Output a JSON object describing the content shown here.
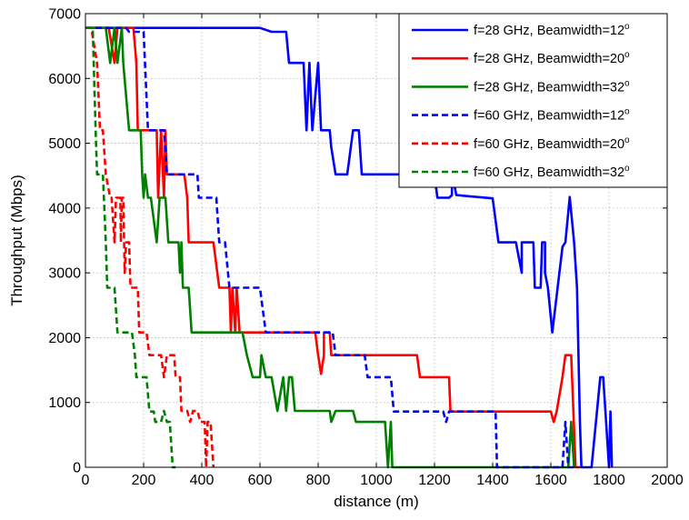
{
  "chart_data": {
    "type": "line",
    "xlabel": "distance (m)",
    "ylabel": "Throughput (Mbps)",
    "xlim": [
      0,
      2000
    ],
    "ylim": [
      0,
      7000
    ],
    "xticks": [
      0,
      200,
      400,
      600,
      800,
      1000,
      1200,
      1400,
      1600,
      1800,
      2000
    ],
    "yticks": [
      0,
      1000,
      2000,
      3000,
      4000,
      5000,
      6000,
      7000
    ],
    "grid": true,
    "legend_position": "top-right",
    "series": [
      {
        "name": "f=28 GHz, Beamwidth=12",
        "name_suffix": "o",
        "color": "#0000ff",
        "dash": "solid",
        "points": [
          [
            0,
            6780
          ],
          [
            600,
            6780
          ],
          [
            640,
            6720
          ],
          [
            690,
            6720
          ],
          [
            700,
            6240
          ],
          [
            750,
            6240
          ],
          [
            760,
            5200
          ],
          [
            770,
            6240
          ],
          [
            780,
            5200
          ],
          [
            800,
            6240
          ],
          [
            810,
            5200
          ],
          [
            840,
            5200
          ],
          [
            845,
            4940
          ],
          [
            860,
            4520
          ],
          [
            900,
            4520
          ],
          [
            920,
            5200
          ],
          [
            940,
            5200
          ],
          [
            950,
            4520
          ],
          [
            1200,
            4520
          ],
          [
            1210,
            4160
          ],
          [
            1250,
            4160
          ],
          [
            1260,
            4200
          ],
          [
            1260,
            4550
          ],
          [
            1275,
            4200
          ],
          [
            1400,
            4150
          ],
          [
            1420,
            3470
          ],
          [
            1480,
            3470
          ],
          [
            1500,
            3000
          ],
          [
            1500,
            3470
          ],
          [
            1540,
            3470
          ],
          [
            1545,
            2770
          ],
          [
            1565,
            2770
          ],
          [
            1570,
            3470
          ],
          [
            1580,
            3470
          ],
          [
            1580,
            3000
          ],
          [
            1590,
            2770
          ],
          [
            1605,
            2080
          ],
          [
            1640,
            3400
          ],
          [
            1650,
            3470
          ],
          [
            1665,
            4170
          ],
          [
            1680,
            3470
          ],
          [
            1690,
            2770
          ],
          [
            1700,
            700
          ],
          [
            1705,
            0
          ],
          [
            1740,
            0
          ],
          [
            1770,
            1390
          ],
          [
            1780,
            1390
          ],
          [
            1790,
            700
          ],
          [
            1800,
            0
          ],
          [
            1805,
            860
          ],
          [
            1810,
            0
          ]
        ]
      },
      {
        "name": "f=28 GHz, Beamwidth=20",
        "name_suffix": "o",
        "color": "#ff0000",
        "dash": "solid",
        "points": [
          [
            0,
            6780
          ],
          [
            80,
            6780
          ],
          [
            100,
            6240
          ],
          [
            110,
            6780
          ],
          [
            165,
            6780
          ],
          [
            175,
            6240
          ],
          [
            180,
            5200
          ],
          [
            245,
            5200
          ],
          [
            250,
            4160
          ],
          [
            260,
            5200
          ],
          [
            270,
            4160
          ],
          [
            275,
            5200
          ],
          [
            280,
            4520
          ],
          [
            340,
            4520
          ],
          [
            350,
            4160
          ],
          [
            355,
            3470
          ],
          [
            420,
            3470
          ],
          [
            440,
            3470
          ],
          [
            460,
            2770
          ],
          [
            495,
            2770
          ],
          [
            500,
            2080
          ],
          [
            505,
            2770
          ],
          [
            515,
            2080
          ],
          [
            520,
            2770
          ],
          [
            530,
            2080
          ],
          [
            790,
            2080
          ],
          [
            800,
            1730
          ],
          [
            810,
            1440
          ],
          [
            820,
            1730
          ],
          [
            820,
            2080
          ],
          [
            840,
            2080
          ],
          [
            845,
            1730
          ],
          [
            1140,
            1730
          ],
          [
            1150,
            1390
          ],
          [
            1250,
            1390
          ],
          [
            1255,
            860
          ],
          [
            1600,
            860
          ],
          [
            1610,
            700
          ],
          [
            1620,
            860
          ],
          [
            1640,
            1390
          ],
          [
            1650,
            1730
          ],
          [
            1670,
            1730
          ],
          [
            1685,
            0
          ],
          [
            1700,
            0
          ]
        ]
      },
      {
        "name": "f=28 GHz, Beamwidth=32",
        "name_suffix": "o",
        "color": "#008000",
        "dash": "solid",
        "points": [
          [
            0,
            6780
          ],
          [
            70,
            6780
          ],
          [
            85,
            6240
          ],
          [
            100,
            6780
          ],
          [
            110,
            6240
          ],
          [
            125,
            6780
          ],
          [
            130,
            6240
          ],
          [
            150,
            5200
          ],
          [
            190,
            5200
          ],
          [
            195,
            4520
          ],
          [
            200,
            4160
          ],
          [
            205,
            4520
          ],
          [
            215,
            4160
          ],
          [
            225,
            4160
          ],
          [
            245,
            3470
          ],
          [
            255,
            4160
          ],
          [
            275,
            4160
          ],
          [
            285,
            3470
          ],
          [
            320,
            3470
          ],
          [
            325,
            3000
          ],
          [
            330,
            3470
          ],
          [
            335,
            2770
          ],
          [
            355,
            2770
          ],
          [
            365,
            2080
          ],
          [
            540,
            2080
          ],
          [
            555,
            1730
          ],
          [
            575,
            1390
          ],
          [
            600,
            1390
          ],
          [
            605,
            1730
          ],
          [
            620,
            1390
          ],
          [
            640,
            1390
          ],
          [
            660,
            870
          ],
          [
            680,
            1390
          ],
          [
            690,
            870
          ],
          [
            700,
            1390
          ],
          [
            710,
            1390
          ],
          [
            720,
            870
          ],
          [
            840,
            870
          ],
          [
            845,
            700
          ],
          [
            860,
            870
          ],
          [
            920,
            870
          ],
          [
            930,
            700
          ],
          [
            1030,
            700
          ],
          [
            1040,
            0
          ],
          [
            1050,
            700
          ],
          [
            1055,
            0
          ],
          [
            1660,
            0
          ],
          [
            1670,
            700
          ],
          [
            1680,
            0
          ]
        ]
      },
      {
        "name": "f=60 GHz, Beamwidth=12",
        "name_suffix": "o",
        "color": "#0000ff",
        "dash": "dashed",
        "points": [
          [
            0,
            6780
          ],
          [
            140,
            6780
          ],
          [
            150,
            6720
          ],
          [
            200,
            6720
          ],
          [
            215,
            5200
          ],
          [
            270,
            5200
          ],
          [
            280,
            4520
          ],
          [
            385,
            4520
          ],
          [
            390,
            4160
          ],
          [
            450,
            4160
          ],
          [
            460,
            3470
          ],
          [
            480,
            3470
          ],
          [
            495,
            2770
          ],
          [
            600,
            2770
          ],
          [
            620,
            2080
          ],
          [
            850,
            2080
          ],
          [
            860,
            1730
          ],
          [
            960,
            1730
          ],
          [
            970,
            1390
          ],
          [
            1050,
            1390
          ],
          [
            1060,
            860
          ],
          [
            1230,
            860
          ],
          [
            1240,
            700
          ],
          [
            1250,
            860
          ],
          [
            1410,
            860
          ],
          [
            1415,
            0
          ],
          [
            1640,
            0
          ],
          [
            1650,
            700
          ],
          [
            1660,
            0
          ],
          [
            1680,
            0
          ]
        ]
      },
      {
        "name": "f=60 GHz, Beamwidth=20",
        "name_suffix": "o",
        "color": "#ff0000",
        "dash": "dashed",
        "points": [
          [
            0,
            6780
          ],
          [
            20,
            6780
          ],
          [
            40,
            6240
          ],
          [
            50,
            5200
          ],
          [
            60,
            5200
          ],
          [
            70,
            4520
          ],
          [
            85,
            4160
          ],
          [
            90,
            4160
          ],
          [
            100,
            3470
          ],
          [
            105,
            4160
          ],
          [
            120,
            4160
          ],
          [
            122,
            3470
          ],
          [
            125,
            4160
          ],
          [
            130,
            4160
          ],
          [
            135,
            3000
          ],
          [
            140,
            3470
          ],
          [
            150,
            3470
          ],
          [
            155,
            2770
          ],
          [
            180,
            2770
          ],
          [
            185,
            2080
          ],
          [
            210,
            2080
          ],
          [
            220,
            1730
          ],
          [
            260,
            1730
          ],
          [
            270,
            1390
          ],
          [
            280,
            1730
          ],
          [
            305,
            1730
          ],
          [
            310,
            1390
          ],
          [
            325,
            1390
          ],
          [
            330,
            870
          ],
          [
            350,
            870
          ],
          [
            360,
            700
          ],
          [
            370,
            870
          ],
          [
            385,
            870
          ],
          [
            395,
            700
          ],
          [
            410,
            700
          ],
          [
            415,
            0
          ],
          [
            420,
            700
          ],
          [
            430,
            700
          ],
          [
            440,
            0
          ]
        ]
      },
      {
        "name": "f=60 GHz, Beamwidth=32",
        "name_suffix": "o",
        "color": "#008000",
        "dash": "dashed",
        "points": [
          [
            0,
            6780
          ],
          [
            25,
            6780
          ],
          [
            35,
            5200
          ],
          [
            40,
            4520
          ],
          [
            60,
            4520
          ],
          [
            70,
            3470
          ],
          [
            75,
            2770
          ],
          [
            100,
            2770
          ],
          [
            110,
            2080
          ],
          [
            160,
            2080
          ],
          [
            170,
            1730
          ],
          [
            175,
            1390
          ],
          [
            210,
            1390
          ],
          [
            220,
            860
          ],
          [
            235,
            860
          ],
          [
            240,
            700
          ],
          [
            260,
            700
          ],
          [
            270,
            870
          ],
          [
            280,
            700
          ],
          [
            290,
            700
          ],
          [
            300,
            0
          ],
          [
            310,
            0
          ]
        ]
      }
    ]
  }
}
